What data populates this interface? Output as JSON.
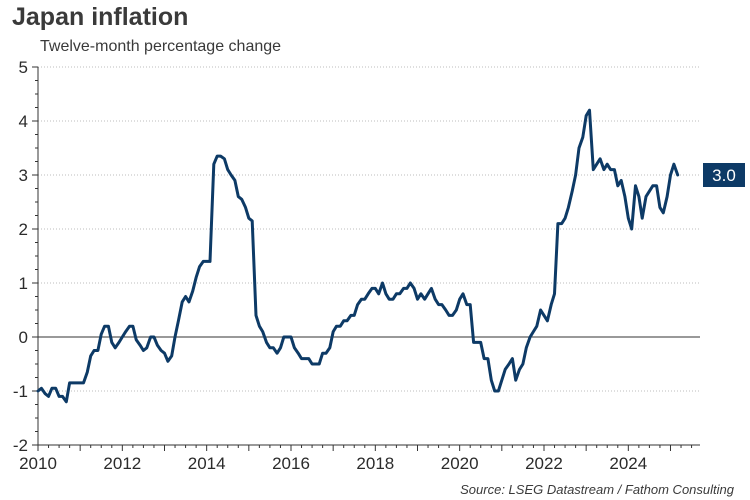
{
  "header": {
    "title": "Japan inflation",
    "subtitle": "Twelve-month percentage change"
  },
  "footer": {
    "source": "Source: LSEG Datastream / Fathom Consulting"
  },
  "colors": {
    "series": "#0d3a66",
    "badge_bg": "#0d3a66",
    "badge_text": "#ffffff",
    "grid": "#bdbdbd",
    "zero_line": "#333333",
    "text": "#2b2b2b"
  },
  "chart_data": {
    "type": "line",
    "title": "Japan inflation",
    "subtitle": "Twelve-month percentage change",
    "xlabel": "",
    "ylabel": "",
    "xlim": [
      2010.0,
      2025.7
    ],
    "ylim": [
      -2,
      5
    ],
    "x_ticks": [
      2010,
      2012,
      2014,
      2016,
      2018,
      2020,
      2022,
      2024
    ],
    "x_tick_labels": [
      "2010",
      "2012",
      "2014",
      "2016",
      "2018",
      "2020",
      "2022",
      "2024"
    ],
    "y_ticks": [
      -2,
      -1,
      0,
      1,
      2,
      3,
      4,
      5
    ],
    "y_tick_labels": [
      "-2",
      "-1",
      "0",
      "1",
      "2",
      "3",
      "4",
      "5"
    ],
    "grid": "horizontal dotted",
    "legend": "none",
    "last_value_label": "3.0",
    "series": [
      {
        "values": [
          [
            2010.0,
            -1.0
          ],
          [
            2010.08,
            -0.95
          ],
          [
            2010.17,
            -1.05
          ],
          [
            2010.25,
            -1.1
          ],
          [
            2010.33,
            -0.95
          ],
          [
            2010.42,
            -0.95
          ],
          [
            2010.5,
            -1.1
          ],
          [
            2010.58,
            -1.1
          ],
          [
            2010.67,
            -1.2
          ],
          [
            2010.75,
            -0.85
          ],
          [
            2010.83,
            -0.85
          ],
          [
            2010.92,
            -0.85
          ],
          [
            2011.0,
            -0.85
          ],
          [
            2011.08,
            -0.85
          ],
          [
            2011.17,
            -0.65
          ],
          [
            2011.25,
            -0.35
          ],
          [
            2011.33,
            -0.25
          ],
          [
            2011.42,
            -0.25
          ],
          [
            2011.5,
            0.05
          ],
          [
            2011.58,
            0.2
          ],
          [
            2011.67,
            0.2
          ],
          [
            2011.75,
            -0.1
          ],
          [
            2011.83,
            -0.2
          ],
          [
            2011.92,
            -0.1
          ],
          [
            2012.0,
            0.0
          ],
          [
            2012.08,
            0.1
          ],
          [
            2012.17,
            0.2
          ],
          [
            2012.25,
            0.2
          ],
          [
            2012.33,
            -0.05
          ],
          [
            2012.42,
            -0.15
          ],
          [
            2012.5,
            -0.25
          ],
          [
            2012.58,
            -0.2
          ],
          [
            2012.67,
            0.0
          ],
          [
            2012.75,
            0.0
          ],
          [
            2012.83,
            -0.15
          ],
          [
            2012.92,
            -0.25
          ],
          [
            2013.0,
            -0.3
          ],
          [
            2013.08,
            -0.45
          ],
          [
            2013.17,
            -0.35
          ],
          [
            2013.25,
            0.0
          ],
          [
            2013.33,
            0.3
          ],
          [
            2013.42,
            0.65
          ],
          [
            2013.5,
            0.75
          ],
          [
            2013.58,
            0.65
          ],
          [
            2013.67,
            0.85
          ],
          [
            2013.75,
            1.1
          ],
          [
            2013.83,
            1.3
          ],
          [
            2013.92,
            1.4
          ],
          [
            2014.0,
            1.4
          ],
          [
            2014.08,
            1.4
          ],
          [
            2014.17,
            3.2
          ],
          [
            2014.25,
            3.35
          ],
          [
            2014.33,
            3.35
          ],
          [
            2014.42,
            3.3
          ],
          [
            2014.5,
            3.1
          ],
          [
            2014.58,
            3.0
          ],
          [
            2014.67,
            2.9
          ],
          [
            2014.75,
            2.6
          ],
          [
            2014.83,
            2.55
          ],
          [
            2014.92,
            2.4
          ],
          [
            2015.0,
            2.2
          ],
          [
            2015.08,
            2.15
          ],
          [
            2015.17,
            0.4
          ],
          [
            2015.25,
            0.2
          ],
          [
            2015.33,
            0.1
          ],
          [
            2015.42,
            -0.1
          ],
          [
            2015.5,
            -0.2
          ],
          [
            2015.58,
            -0.2
          ],
          [
            2015.67,
            -0.3
          ],
          [
            2015.75,
            -0.2
          ],
          [
            2015.83,
            0.0
          ],
          [
            2015.92,
            0.0
          ],
          [
            2016.0,
            0.0
          ],
          [
            2016.08,
            -0.2
          ],
          [
            2016.17,
            -0.3
          ],
          [
            2016.25,
            -0.4
          ],
          [
            2016.33,
            -0.4
          ],
          [
            2016.42,
            -0.4
          ],
          [
            2016.5,
            -0.5
          ],
          [
            2016.58,
            -0.5
          ],
          [
            2016.67,
            -0.5
          ],
          [
            2016.75,
            -0.3
          ],
          [
            2016.83,
            -0.3
          ],
          [
            2016.92,
            -0.2
          ],
          [
            2017.0,
            0.1
          ],
          [
            2017.08,
            0.2
          ],
          [
            2017.17,
            0.2
          ],
          [
            2017.25,
            0.3
          ],
          [
            2017.33,
            0.3
          ],
          [
            2017.42,
            0.4
          ],
          [
            2017.5,
            0.4
          ],
          [
            2017.58,
            0.6
          ],
          [
            2017.67,
            0.7
          ],
          [
            2017.75,
            0.7
          ],
          [
            2017.83,
            0.8
          ],
          [
            2017.92,
            0.9
          ],
          [
            2018.0,
            0.9
          ],
          [
            2018.08,
            0.8
          ],
          [
            2018.17,
            1.0
          ],
          [
            2018.25,
            0.8
          ],
          [
            2018.33,
            0.7
          ],
          [
            2018.42,
            0.7
          ],
          [
            2018.5,
            0.8
          ],
          [
            2018.58,
            0.8
          ],
          [
            2018.67,
            0.9
          ],
          [
            2018.75,
            0.9
          ],
          [
            2018.83,
            1.0
          ],
          [
            2018.92,
            0.9
          ],
          [
            2019.0,
            0.7
          ],
          [
            2019.08,
            0.8
          ],
          [
            2019.17,
            0.7
          ],
          [
            2019.25,
            0.8
          ],
          [
            2019.33,
            0.9
          ],
          [
            2019.42,
            0.7
          ],
          [
            2019.5,
            0.6
          ],
          [
            2019.58,
            0.6
          ],
          [
            2019.67,
            0.5
          ],
          [
            2019.75,
            0.4
          ],
          [
            2019.83,
            0.4
          ],
          [
            2019.92,
            0.5
          ],
          [
            2020.0,
            0.7
          ],
          [
            2020.08,
            0.8
          ],
          [
            2020.17,
            0.6
          ],
          [
            2020.25,
            0.6
          ],
          [
            2020.33,
            -0.1
          ],
          [
            2020.42,
            -0.1
          ],
          [
            2020.5,
            -0.1
          ],
          [
            2020.58,
            -0.4
          ],
          [
            2020.67,
            -0.4
          ],
          [
            2020.75,
            -0.8
          ],
          [
            2020.83,
            -1.0
          ],
          [
            2020.92,
            -1.0
          ],
          [
            2021.0,
            -0.8
          ],
          [
            2021.08,
            -0.6
          ],
          [
            2021.17,
            -0.5
          ],
          [
            2021.25,
            -0.4
          ],
          [
            2021.33,
            -0.8
          ],
          [
            2021.42,
            -0.6
          ],
          [
            2021.5,
            -0.5
          ],
          [
            2021.58,
            -0.2
          ],
          [
            2021.67,
            0.0
          ],
          [
            2021.75,
            0.1
          ],
          [
            2021.83,
            0.2
          ],
          [
            2021.92,
            0.5
          ],
          [
            2022.0,
            0.4
          ],
          [
            2022.08,
            0.3
          ],
          [
            2022.17,
            0.6
          ],
          [
            2022.25,
            0.8
          ],
          [
            2022.33,
            2.1
          ],
          [
            2022.42,
            2.1
          ],
          [
            2022.5,
            2.2
          ],
          [
            2022.58,
            2.4
          ],
          [
            2022.67,
            2.7
          ],
          [
            2022.75,
            3.0
          ],
          [
            2022.83,
            3.5
          ],
          [
            2022.92,
            3.7
          ],
          [
            2023.0,
            4.1
          ],
          [
            2023.08,
            4.2
          ],
          [
            2023.17,
            3.1
          ],
          [
            2023.25,
            3.2
          ],
          [
            2023.33,
            3.3
          ],
          [
            2023.42,
            3.1
          ],
          [
            2023.5,
            3.2
          ],
          [
            2023.58,
            3.1
          ],
          [
            2023.67,
            3.1
          ],
          [
            2023.75,
            2.8
          ],
          [
            2023.83,
            2.9
          ],
          [
            2023.92,
            2.6
          ],
          [
            2024.0,
            2.2
          ],
          [
            2024.08,
            2.0
          ],
          [
            2024.17,
            2.8
          ],
          [
            2024.25,
            2.6
          ],
          [
            2024.33,
            2.2
          ],
          [
            2024.42,
            2.6
          ],
          [
            2024.5,
            2.7
          ],
          [
            2024.58,
            2.8
          ],
          [
            2024.67,
            2.8
          ],
          [
            2024.75,
            2.4
          ],
          [
            2024.83,
            2.3
          ],
          [
            2024.92,
            2.6
          ],
          [
            2025.0,
            3.0
          ],
          [
            2025.08,
            3.2
          ],
          [
            2025.17,
            3.0
          ]
        ]
      }
    ]
  }
}
